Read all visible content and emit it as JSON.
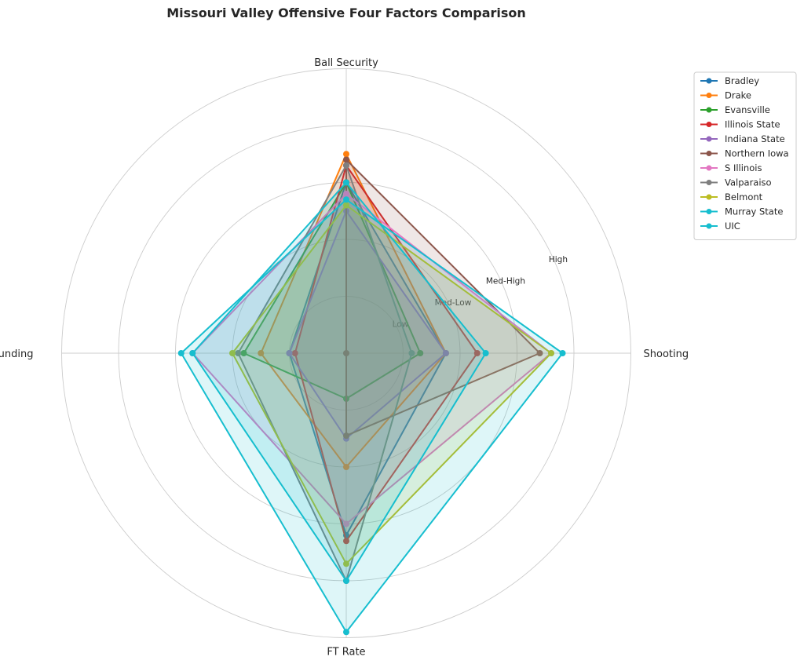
{
  "chart_data": {
    "type": "radar",
    "title": "Missouri Valley Offensive Four Factors Comparison",
    "axes": [
      "Ball Security",
      "Shooting",
      "FT Rate",
      "Off Rebounding"
    ],
    "ring_labels": [
      "Low",
      "Med-Low",
      "Med-High",
      "High"
    ],
    "rlim": [
      0,
      4
    ],
    "grid": true,
    "legend_position": "right",
    "series": [
      {
        "name": "Bradley",
        "color": "#1f77b4",
        "values": [
          3.0,
          1.75,
          3.2,
          1.0
        ]
      },
      {
        "name": "Drake",
        "color": "#ff7f0e",
        "values": [
          3.5,
          1.75,
          2.0,
          1.5
        ]
      },
      {
        "name": "Evansville",
        "color": "#2ca02c",
        "values": [
          3.0,
          1.3,
          0.8,
          1.8
        ]
      },
      {
        "name": "Illinois State",
        "color": "#d62728",
        "values": [
          3.3,
          2.3,
          3.3,
          0.9
        ]
      },
      {
        "name": "Indiana State",
        "color": "#9467bd",
        "values": [
          2.5,
          1.75,
          1.5,
          1.0
        ]
      },
      {
        "name": "Northern Iowa",
        "color": "#8c564b",
        "values": [
          3.4,
          3.4,
          1.45,
          0.0
        ]
      },
      {
        "name": "S Illinois",
        "color": "#e377c2",
        "values": [
          2.8,
          3.6,
          3.0,
          2.7
        ]
      },
      {
        "name": "Valparaiso",
        "color": "#7f7f7f",
        "values": [
          3.3,
          1.15,
          4.0,
          1.9
        ]
      },
      {
        "name": "Belmont",
        "color": "#bcbd22",
        "values": [
          2.6,
          3.6,
          3.7,
          2.0
        ]
      },
      {
        "name": "Murray State",
        "color": "#17becf",
        "values": [
          3.0,
          2.45,
          4.0,
          2.7
        ]
      },
      {
        "name": "UIC",
        "color": "#17becf",
        "values": [
          2.7,
          3.8,
          4.9,
          2.9
        ]
      }
    ]
  }
}
